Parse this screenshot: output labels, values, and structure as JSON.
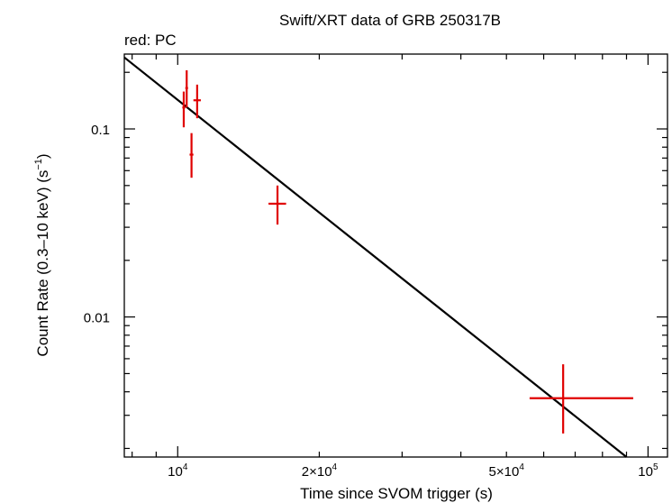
{
  "chart_data": {
    "type": "scatter",
    "title": "Swift/XRT data of GRB 250317B",
    "subtitle": "red: PC",
    "xlabel": "Time since SVOM trigger (s)",
    "ylabel_main": "Count Rate (0.3–10 keV) (s",
    "ylabel_sup": "−1",
    "ylabel_end": ")",
    "xscale": "log",
    "yscale": "log",
    "xlim": [
      7700,
      110000
    ],
    "ylim": [
      0.0018,
      0.25
    ],
    "x_ticks": [
      {
        "value": 10000,
        "base": "10",
        "sup": "4"
      },
      {
        "value": 20000,
        "base": "2×10",
        "sup": "4"
      },
      {
        "value": 50000,
        "base": "5×10",
        "sup": "4"
      },
      {
        "value": 100000,
        "base": "10",
        "sup": "5"
      }
    ],
    "y_ticks": [
      {
        "value": 0.1,
        "label": "0.1"
      },
      {
        "value": 0.01,
        "label": "0.01"
      }
    ],
    "series": [
      {
        "name": "PC",
        "color": "#e00000",
        "points": [
          {
            "x": 10300,
            "xlo": 10230,
            "xhi": 10380,
            "y": 0.13,
            "ylo": 0.102,
            "yhi": 0.158
          },
          {
            "x": 10450,
            "xlo": 10380,
            "xhi": 10520,
            "y": 0.165,
            "ylo": 0.13,
            "yhi": 0.205
          },
          {
            "x": 10700,
            "xlo": 10600,
            "xhi": 10800,
            "y": 0.073,
            "ylo": 0.055,
            "yhi": 0.095
          },
          {
            "x": 11000,
            "xlo": 10800,
            "xhi": 11200,
            "y": 0.142,
            "ylo": 0.114,
            "yhi": 0.172
          },
          {
            "x": 16300,
            "xlo": 15600,
            "xhi": 17000,
            "y": 0.04,
            "ylo": 0.031,
            "yhi": 0.05
          },
          {
            "x": 66000,
            "xlo": 56000,
            "xhi": 93000,
            "y": 0.0037,
            "ylo": 0.0024,
            "yhi": 0.0056
          }
        ]
      }
    ],
    "model_line": {
      "name": "power-law fit",
      "color": "#000000",
      "x": [
        7700,
        90000
      ],
      "y": [
        0.24,
        0.0018
      ]
    }
  }
}
